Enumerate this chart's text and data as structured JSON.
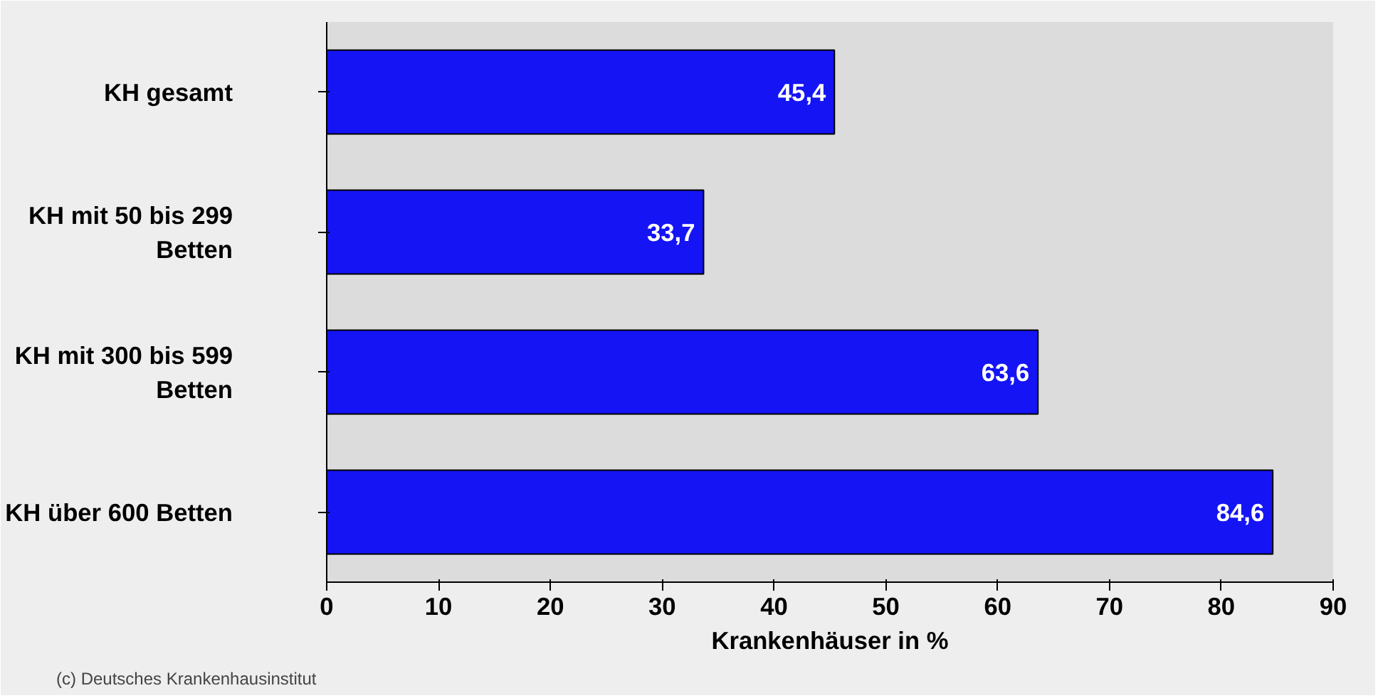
{
  "chart_data": {
    "type": "bar",
    "orientation": "horizontal",
    "xlabel": "Krankenhäuser in %",
    "categories": [
      "KH gesamt",
      "KH mit 50 bis 299 Betten",
      "KH mit 300 bis 599 Betten",
      "KH über 600 Betten"
    ],
    "values": [
      45.4,
      33.7,
      63.6,
      84.6
    ],
    "color": "#1414f5",
    "data_labels": true,
    "value_labels": [
      "45,4",
      "33,7",
      "63,6",
      "84,6"
    ],
    "xlim": [
      0,
      90
    ],
    "xticks": [
      0,
      10,
      20,
      30,
      40,
      50,
      60,
      70,
      80,
      90
    ],
    "grid": false,
    "annotations": [
      "(c) Deutsches Krankenhausinstitut"
    ]
  }
}
